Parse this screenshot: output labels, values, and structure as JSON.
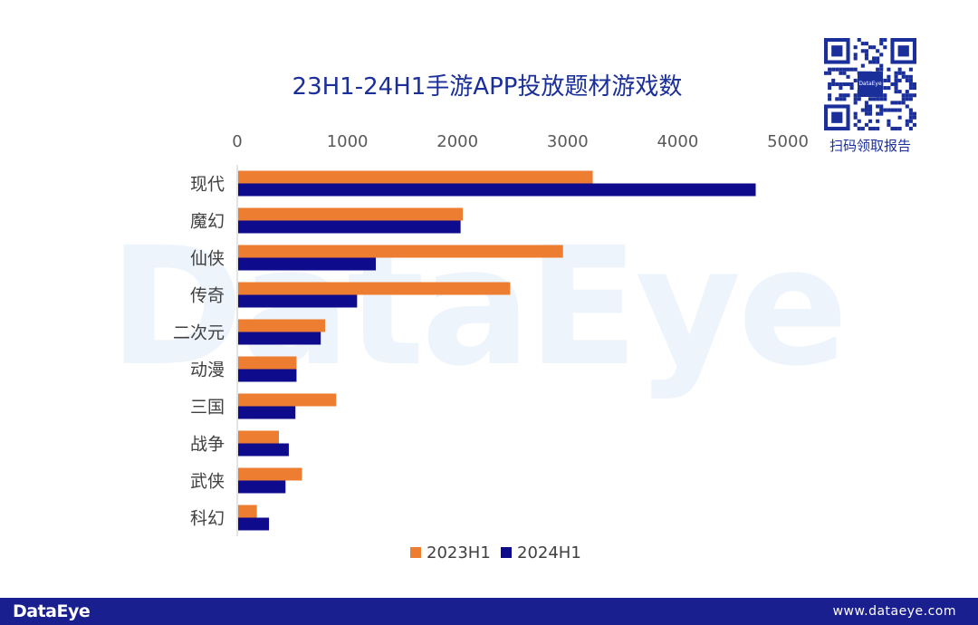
{
  "watermark": "DataEye",
  "qr": {
    "caption": "扫码领取报告",
    "logo_text": "DataEye"
  },
  "footer": {
    "logo": "DataEye",
    "url": "www.dataeye.com"
  },
  "chart_data": {
    "type": "bar",
    "orientation": "horizontal",
    "title": "23H1-24H1手游APP投放题材游戏数",
    "categories": [
      "现代",
      "魔幻",
      "仙侠",
      "传奇",
      "二次元",
      "动漫",
      "三国",
      "战争",
      "武侠",
      "科幻"
    ],
    "series": [
      {
        "name": "2023H1",
        "color": "#ed7d31",
        "values": [
          3220,
          2040,
          2950,
          2470,
          790,
          530,
          890,
          370,
          580,
          170
        ]
      },
      {
        "name": "2024H1",
        "color": "#0e0c8c",
        "values": [
          4700,
          2020,
          1250,
          1080,
          750,
          530,
          520,
          460,
          430,
          280
        ]
      }
    ],
    "xlim": [
      0,
      5000
    ],
    "xticks": [
      "0",
      "1000",
      "2000",
      "3000",
      "4000",
      "5000"
    ],
    "xlabel": "",
    "ylabel": "",
    "legend_position": "bottom",
    "grid": false
  }
}
